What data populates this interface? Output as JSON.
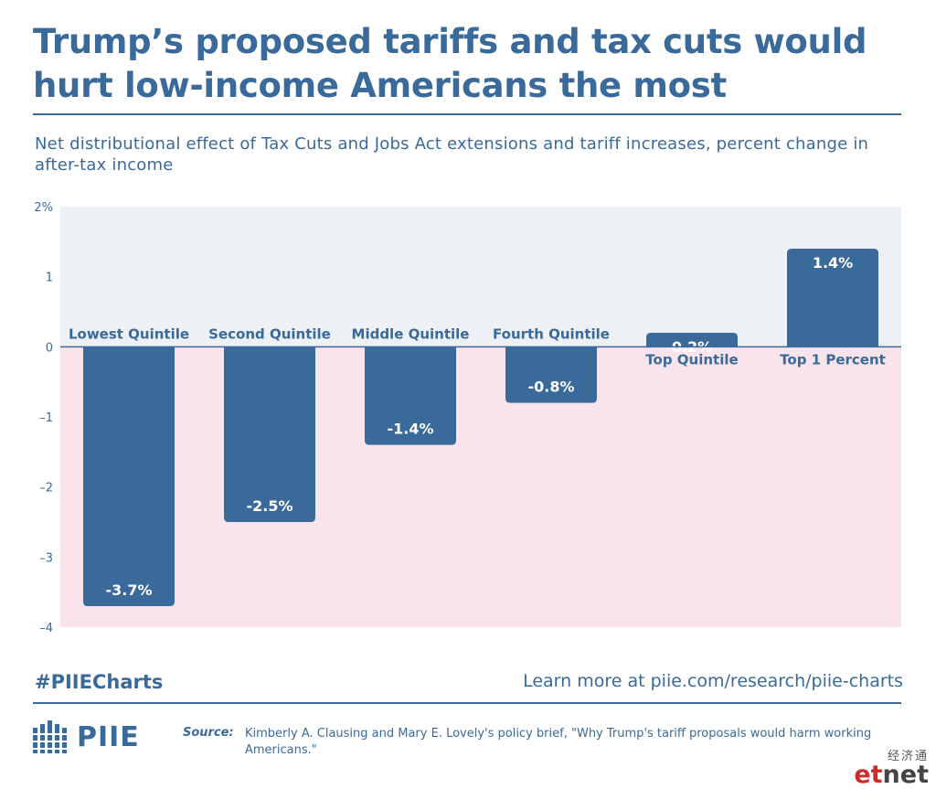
{
  "header": {
    "title": "Trump’s proposed tariffs and tax cuts would hurt low-income Americans the most",
    "subtitle": "Net distributional effect of Tax Cuts and Jobs Act extensions and tariff increases, percent change in after-tax income"
  },
  "chart_data": {
    "type": "bar",
    "title": "Trump’s proposed tariffs and tax cuts would hurt low-income Americans the most",
    "subtitle": "Net distributional effect of Tax Cuts and Jobs Act extensions and tariff increases, percent change in after-tax income",
    "categories": [
      "Lowest Quintile",
      "Second Quintile",
      "Middle Quintile",
      "Fourth Quintile",
      "Top Quintile",
      "Top 1 Percent"
    ],
    "values": [
      -3.7,
      -2.5,
      -1.4,
      -0.8,
      0.2,
      1.4
    ],
    "data_labels": [
      "-3.7%",
      "-2.5%",
      "-1.4%",
      "-0.8%",
      "0.2%",
      "1.4%"
    ],
    "yticks": [
      2,
      1,
      0,
      -1,
      -2,
      -3,
      -4
    ],
    "ytick_labels": [
      "2%",
      "1",
      "0",
      "–1",
      "–2",
      "–3",
      "–4"
    ],
    "ylim": [
      -4,
      2
    ],
    "xlabel": "",
    "ylabel": "",
    "grid": false,
    "colors": {
      "bar": "#3a6a9a",
      "positive_region": "#edf1f5",
      "negative_region": "#f9e4ec",
      "zero_line": "#3a6a9a",
      "text": "#3a6a9a"
    }
  },
  "footer": {
    "hashtag": "#PIIECharts",
    "learn_more": "Learn more at piie.com/research/piie-charts",
    "logo_text": "PIIE",
    "logo_icon": "piie-building-icon",
    "source_label": "Source:",
    "source_text": "Kimberly A. Clausing and Mary E. Lovely's policy brief, \"Why Trump's tariff proposals would harm working Americans.\""
  },
  "watermark": {
    "chinese": "经济通",
    "brand_e": "et",
    "brand_n": "net"
  }
}
